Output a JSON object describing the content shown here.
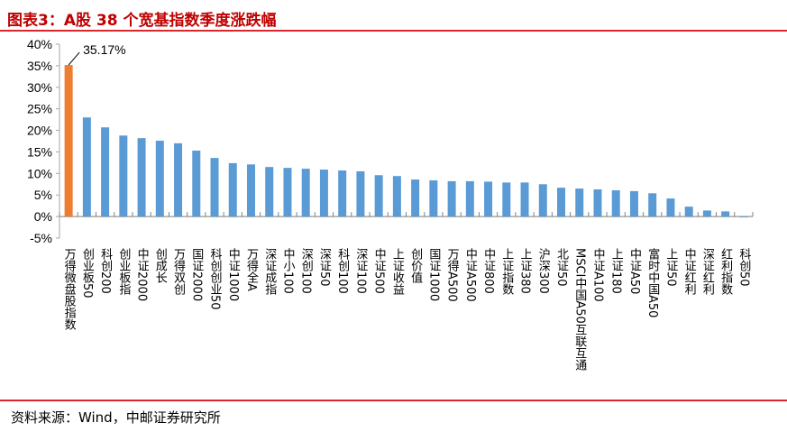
{
  "header": {
    "title": "图表3：A股 38 个宽基指数季度涨跌幅"
  },
  "footer": {
    "source": "资料来源：Wind，中邮证券研究所"
  },
  "chart_data": {
    "type": "bar",
    "title": "",
    "xlabel": "",
    "ylabel": "",
    "ylim": [
      -5,
      40
    ],
    "yticks": [
      -5,
      0,
      5,
      10,
      15,
      20,
      25,
      30,
      35,
      40
    ],
    "ytick_format": "percent",
    "grid": false,
    "highlight_color": "#ed7d31",
    "bar_color": "#5b9bd5",
    "annotation": {
      "index": 0,
      "text": "35.17%"
    },
    "categories": [
      "万得微盘股指数",
      "创业板50",
      "科创200",
      "创业板指",
      "中证2000",
      "创成长",
      "万得双创",
      "国证2000",
      "科创创业50",
      "中证1000",
      "万得全A",
      "深证成指",
      "中小100",
      "深创100",
      "深证50",
      "科创100",
      "深证100",
      "中证500",
      "上证收益",
      "创价值",
      "国证1000",
      "万得A500",
      "中证A500",
      "中证800",
      "上证指数",
      "上证380",
      "沪深300",
      "北证50",
      "MSCI中国A50互联互通",
      "中证A100",
      "上证180",
      "中证A50",
      "富时中国A50",
      "上证50",
      "中证红利",
      "深证红利",
      "红利指数",
      "科创50"
    ],
    "values": [
      35.17,
      23.0,
      20.7,
      18.8,
      18.2,
      17.6,
      17.0,
      15.3,
      13.6,
      12.4,
      12.1,
      11.5,
      11.3,
      11.1,
      10.9,
      10.7,
      10.5,
      9.6,
      9.4,
      8.6,
      8.4,
      8.2,
      8.2,
      8.1,
      7.9,
      7.9,
      7.5,
      6.7,
      6.5,
      6.3,
      6.1,
      5.9,
      5.4,
      4.2,
      2.3,
      1.4,
      1.2,
      -0.2
    ]
  }
}
